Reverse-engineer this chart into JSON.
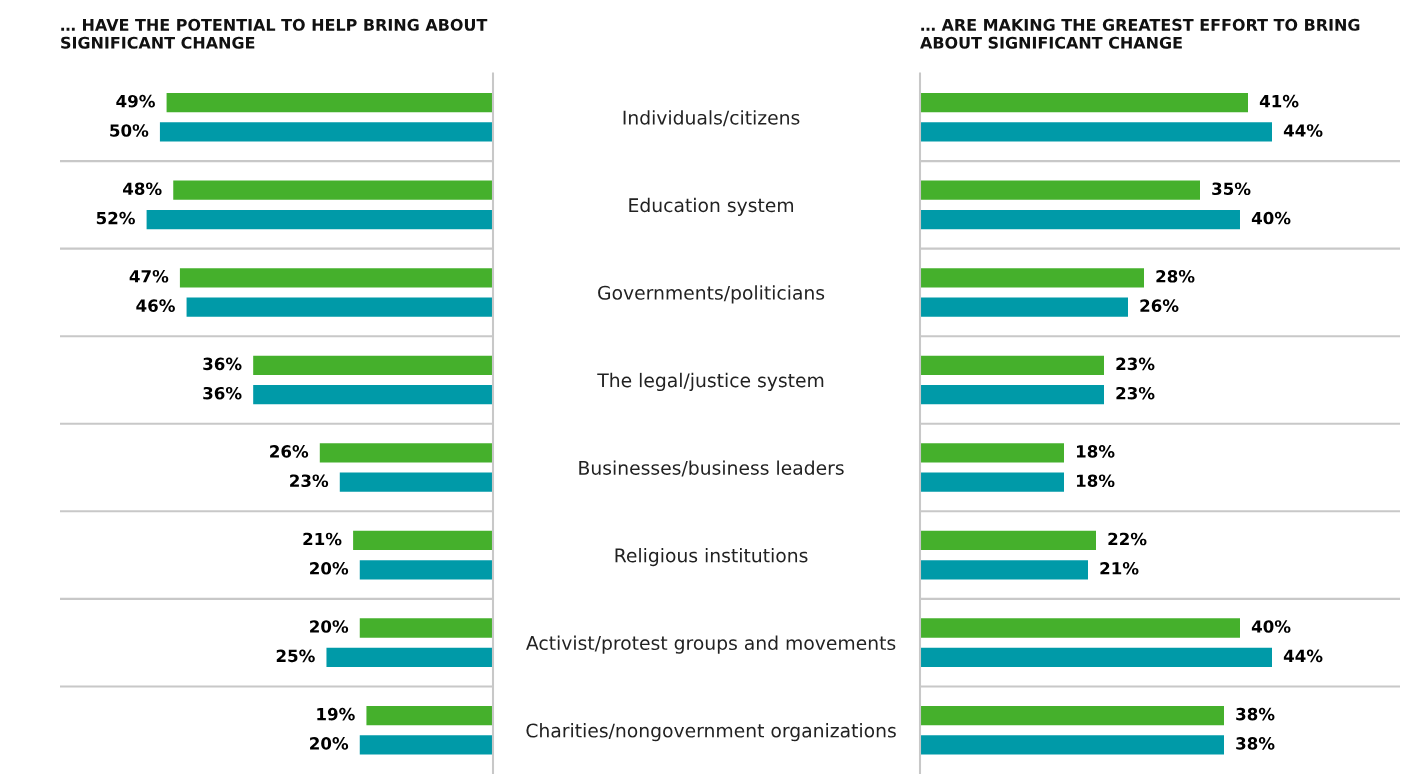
{
  "chart_data": [
    {
      "type": "bar",
      "orientation": "horizontal",
      "title": "… HAVE THE POTENTIAL TO HELP BRING ABOUT\nSIGNIFICANT CHANGE",
      "categories": [
        "Individuals/citizens",
        "Education system",
        "Governments/politicians",
        "The legal/justice system",
        "Businesses/business leaders",
        "Religious institutions",
        "Activist/protest groups and movements",
        "Charities/nongovernment organizations"
      ],
      "xlim": [
        65,
        0
      ],
      "tick_labels": "y",
      "series": [
        {
          "color": "#45b02c",
          "values": [
            49,
            48,
            47,
            36,
            26,
            21,
            20,
            19
          ],
          "value_labels": [
            "49%",
            "48%",
            "47%",
            "36%",
            "26%",
            "21%",
            "20%",
            "19%"
          ]
        },
        {
          "color": "#009aa8",
          "values": [
            50,
            52,
            46,
            36,
            23,
            20,
            25,
            20
          ],
          "value_labels": [
            "50%",
            "52%",
            "46%",
            "36%",
            "23%",
            "20%",
            "25%",
            "20%"
          ]
        }
      ]
    },
    {
      "type": "bar",
      "orientation": "horizontal",
      "title": "… ARE MAKING THE GREATEST EFFORT TO BRING\nABOUT SIGNIFICANT CHANGE",
      "xlim": [
        0,
        60
      ],
      "tick_labels": false,
      "series": [
        {
          "color": "#45b02c",
          "values": [
            41,
            35,
            28,
            23,
            18,
            22,
            40,
            38
          ],
          "value_labels": [
            "41%",
            "35%",
            "28%",
            "23%",
            "18%",
            "22%",
            "40%",
            "38%"
          ]
        },
        {
          "color": "#009aa8",
          "values": [
            44,
            40,
            26,
            23,
            18,
            21,
            44,
            38
          ],
          "value_labels": [
            "44%",
            "40%",
            "26%",
            "23%",
            "18%",
            "21%",
            "44%",
            "38%"
          ]
        }
      ]
    }
  ]
}
